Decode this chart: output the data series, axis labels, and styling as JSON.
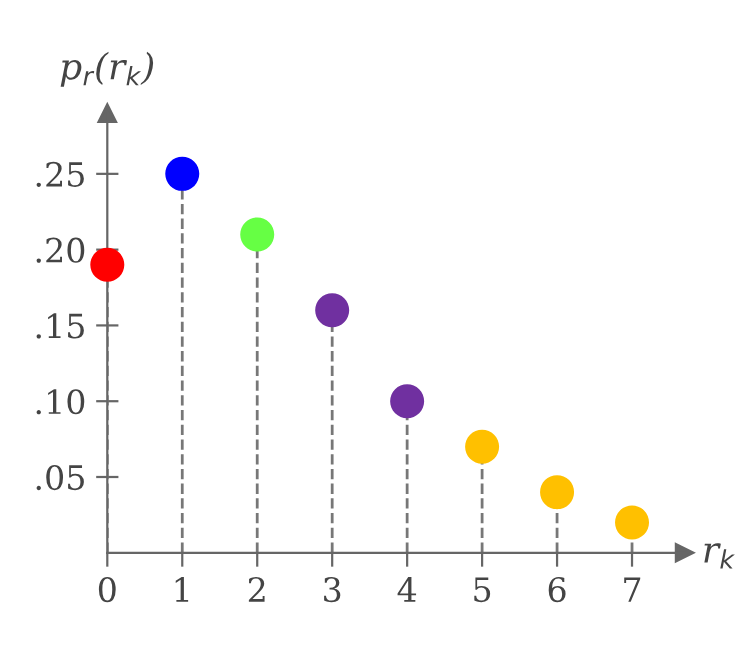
{
  "chart_data": {
    "type": "lollipop",
    "xlabel": "r$_{k}$",
    "ylabel": "p$_{r}$(r$_{k}$)",
    "x": [
      0,
      1,
      2,
      3,
      4,
      5,
      6,
      7
    ],
    "values": [
      0.19,
      0.25,
      0.21,
      0.16,
      0.1,
      0.07,
      0.04,
      0.02
    ],
    "colors": [
      "#ff0000",
      "#0000ff",
      "#66ff44",
      "#7030a0",
      "#7030a0",
      "#ffc000",
      "#ffc000",
      "#ffc000"
    ],
    "xlim": [
      0,
      7.7
    ],
    "ylim": [
      0,
      0.29
    ],
    "xticks": [
      0,
      1,
      2,
      3,
      4,
      5,
      6,
      7
    ],
    "yticks": [
      {
        "value": 0.05,
        "label": ".05"
      },
      {
        "value": 0.1,
        "label": ".10"
      },
      {
        "value": 0.15,
        "label": ".15"
      },
      {
        "value": 0.2,
        "label": ".20"
      },
      {
        "value": 0.25,
        "label": ".25"
      }
    ],
    "marker": "circle",
    "line_style": "dashed"
  }
}
